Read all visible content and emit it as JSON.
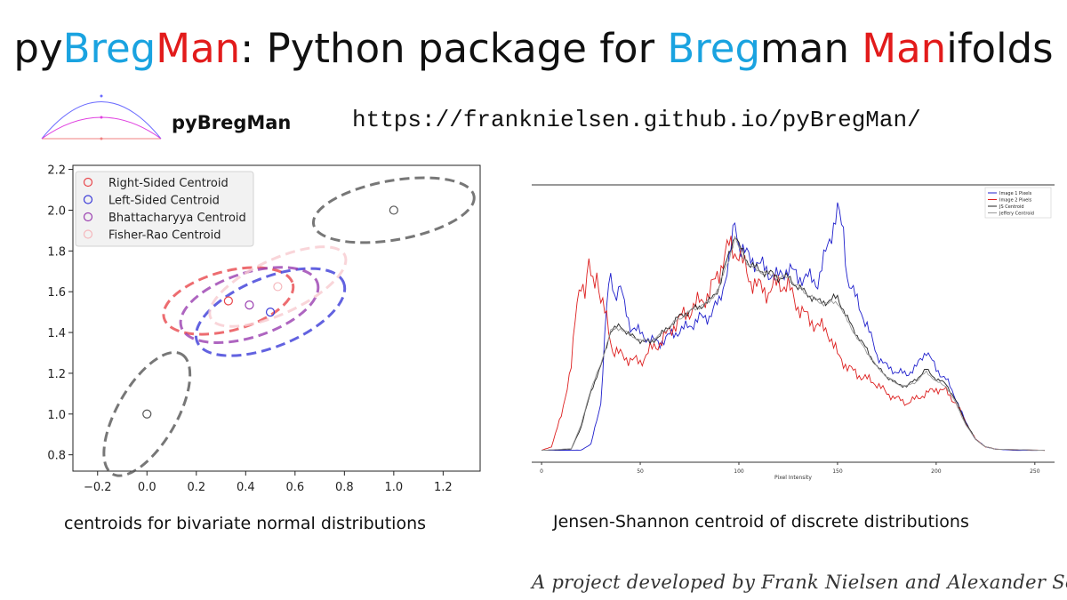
{
  "title": {
    "parts": [
      {
        "text": "py",
        "color": "#111111"
      },
      {
        "text": "Breg",
        "color": "#1aa3e0"
      },
      {
        "text": "Man",
        "color": "#e21b1b"
      },
      {
        "text": ": Python package for ",
        "color": "#111111"
      },
      {
        "text": "Breg",
        "color": "#1aa3e0"
      },
      {
        "text": "man ",
        "color": "#111111"
      },
      {
        "text": "Man",
        "color": "#e21b1b"
      },
      {
        "text": "ifolds",
        "color": "#111111"
      }
    ]
  },
  "logo_text": "pyBregMan",
  "url": "https://franknielsen.github.io/pyBregMan/",
  "caption_left": "centroids for bivariate normal distributions",
  "caption_right": "Jensen-Shannon centroid of discrete distributions",
  "signature": "A project developed by Frank Nielsen and Alexander Soen",
  "chart_data": [
    {
      "type": "scatter",
      "xlim": [
        -0.3,
        1.35
      ],
      "ylim": [
        0.72,
        2.22
      ],
      "xticks": [
        "−0.2",
        "0.0",
        "0.2",
        "0.4",
        "0.6",
        "0.8",
        "1.0",
        "1.2"
      ],
      "xtick_values": [
        -0.2,
        0.0,
        0.2,
        0.4,
        0.6,
        0.8,
        1.0,
        1.2
      ],
      "yticks": [
        "0.8",
        "1.0",
        "1.2",
        "1.4",
        "1.6",
        "1.8",
        "2.0",
        "2.2"
      ],
      "ytick_values": [
        0.8,
        1.0,
        1.2,
        1.4,
        1.6,
        1.8,
        2.0,
        2.2
      ],
      "legend_position": "top-left",
      "legend": [
        {
          "label": "Right-Sided Centroid",
          "color": "#e8474c"
        },
        {
          "label": "Left-Sided Centroid",
          "color": "#3b3bd8"
        },
        {
          "label": "Bhattacharyya Centroid",
          "color": "#9a3fb0"
        },
        {
          "label": "Fisher-Rao Centroid",
          "color": "#f5b8bd"
        }
      ],
      "points": [
        {
          "x": 0.0,
          "y": 1.0,
          "color": "#555555"
        },
        {
          "x": 1.0,
          "y": 2.0,
          "color": "#555555"
        },
        {
          "x": 0.33,
          "y": 1.555,
          "color": "#e8474c"
        },
        {
          "x": 0.415,
          "y": 1.535,
          "color": "#9a3fb0"
        },
        {
          "x": 0.5,
          "y": 1.5,
          "color": "#3b3bd8"
        },
        {
          "x": 0.53,
          "y": 1.625,
          "color": "#f5b8bd"
        }
      ],
      "ellipses": [
        {
          "cx": 0.0,
          "cy": 1.0,
          "rx": 0.28,
          "ry": 0.12,
          "angle": 60,
          "color": "#555555"
        },
        {
          "cx": 1.0,
          "cy": 2.0,
          "rx": 0.33,
          "ry": 0.12,
          "angle": 10,
          "color": "#555555"
        },
        {
          "cx": 0.33,
          "cy": 1.555,
          "rx": 0.27,
          "ry": 0.12,
          "angle": 15,
          "color": "#e8474c"
        },
        {
          "cx": 0.5,
          "cy": 1.5,
          "rx": 0.32,
          "ry": 0.14,
          "angle": 22,
          "color": "#3b3bd8"
        },
        {
          "cx": 0.415,
          "cy": 1.535,
          "rx": 0.29,
          "ry": 0.13,
          "angle": 18,
          "color": "#9a3fb0"
        },
        {
          "cx": 0.53,
          "cy": 1.625,
          "rx": 0.3,
          "ry": 0.11,
          "angle": 25,
          "color": "#f8cbd0"
        }
      ]
    },
    {
      "type": "line",
      "xlabel": "Pixel Intensity",
      "xlim": [
        -5,
        260
      ],
      "xticks": [
        0,
        50,
        100,
        150,
        200,
        250
      ],
      "legend_position": "top-right",
      "series": [
        {
          "name": "Image 1 Pixels",
          "color": "#1f1fcc",
          "keypoints": [
            [
              0,
              0.005
            ],
            [
              20,
              0.006
            ],
            [
              25,
              0.03
            ],
            [
              30,
              0.2
            ],
            [
              33,
              0.6
            ],
            [
              35,
              0.73
            ],
            [
              37,
              0.65
            ],
            [
              40,
              0.68
            ],
            [
              42,
              0.6
            ],
            [
              45,
              0.52
            ],
            [
              50,
              0.49
            ],
            [
              55,
              0.46
            ],
            [
              60,
              0.45
            ],
            [
              65,
              0.48
            ],
            [
              70,
              0.5
            ],
            [
              75,
              0.52
            ],
            [
              80,
              0.55
            ],
            [
              85,
              0.56
            ],
            [
              90,
              0.62
            ],
            [
              95,
              0.78
            ],
            [
              98,
              0.95
            ],
            [
              100,
              0.86
            ],
            [
              105,
              0.8
            ],
            [
              110,
              0.78
            ],
            [
              115,
              0.74
            ],
            [
              120,
              0.72
            ],
            [
              125,
              0.76
            ],
            [
              130,
              0.72
            ],
            [
              135,
              0.72
            ],
            [
              140,
              0.7
            ],
            [
              145,
              0.85
            ],
            [
              150,
              1.0
            ],
            [
              153,
              0.9
            ],
            [
              155,
              0.72
            ],
            [
              160,
              0.62
            ],
            [
              165,
              0.52
            ],
            [
              170,
              0.4
            ],
            [
              175,
              0.35
            ],
            [
              180,
              0.33
            ],
            [
              185,
              0.32
            ],
            [
              190,
              0.35
            ],
            [
              195,
              0.42
            ],
            [
              200,
              0.34
            ],
            [
              205,
              0.3
            ],
            [
              210,
              0.22
            ],
            [
              215,
              0.12
            ],
            [
              220,
              0.05
            ],
            [
              225,
              0.02
            ],
            [
              230,
              0.01
            ],
            [
              240,
              0.005
            ],
            [
              255,
              0.005
            ]
          ]
        },
        {
          "name": "Image 2 Pixels",
          "color": "#dd1f1f",
          "keypoints": [
            [
              0,
              0.005
            ],
            [
              5,
              0.02
            ],
            [
              10,
              0.15
            ],
            [
              15,
              0.35
            ],
            [
              18,
              0.62
            ],
            [
              20,
              0.72
            ],
            [
              22,
              0.65
            ],
            [
              24,
              0.76
            ],
            [
              26,
              0.7
            ],
            [
              28,
              0.75
            ],
            [
              30,
              0.62
            ],
            [
              33,
              0.55
            ],
            [
              36,
              0.42
            ],
            [
              40,
              0.4
            ],
            [
              45,
              0.38
            ],
            [
              50,
              0.37
            ],
            [
              55,
              0.42
            ],
            [
              60,
              0.45
            ],
            [
              65,
              0.5
            ],
            [
              70,
              0.55
            ],
            [
              75,
              0.58
            ],
            [
              80,
              0.62
            ],
            [
              85,
              0.65
            ],
            [
              90,
              0.75
            ],
            [
              95,
              0.85
            ],
            [
              100,
              0.82
            ],
            [
              105,
              0.72
            ],
            [
              110,
              0.68
            ],
            [
              115,
              0.66
            ],
            [
              120,
              0.7
            ],
            [
              125,
              0.68
            ],
            [
              130,
              0.6
            ],
            [
              135,
              0.55
            ],
            [
              140,
              0.52
            ],
            [
              145,
              0.5
            ],
            [
              150,
              0.4
            ],
            [
              155,
              0.35
            ],
            [
              160,
              0.32
            ],
            [
              165,
              0.3
            ],
            [
              170,
              0.28
            ],
            [
              175,
              0.24
            ],
            [
              180,
              0.22
            ],
            [
              185,
              0.2
            ],
            [
              190,
              0.22
            ],
            [
              195,
              0.24
            ],
            [
              200,
              0.26
            ],
            [
              205,
              0.25
            ],
            [
              210,
              0.2
            ],
            [
              215,
              0.12
            ],
            [
              220,
              0.05
            ],
            [
              225,
              0.02
            ],
            [
              230,
              0.01
            ],
            [
              255,
              0.005
            ]
          ]
        },
        {
          "name": "JS Centroid",
          "color": "#222222",
          "keypoints": [
            [
              0,
              0.005
            ],
            [
              15,
              0.01
            ],
            [
              20,
              0.1
            ],
            [
              25,
              0.25
            ],
            [
              30,
              0.35
            ],
            [
              35,
              0.5
            ],
            [
              40,
              0.52
            ],
            [
              45,
              0.48
            ],
            [
              50,
              0.46
            ],
            [
              55,
              0.45
            ],
            [
              60,
              0.48
            ],
            [
              65,
              0.52
            ],
            [
              70,
              0.56
            ],
            [
              75,
              0.58
            ],
            [
              80,
              0.6
            ],
            [
              85,
              0.62
            ],
            [
              90,
              0.68
            ],
            [
              95,
              0.82
            ],
            [
              98,
              0.9
            ],
            [
              100,
              0.85
            ],
            [
              105,
              0.78
            ],
            [
              110,
              0.75
            ],
            [
              115,
              0.74
            ],
            [
              120,
              0.72
            ],
            [
              125,
              0.72
            ],
            [
              130,
              0.68
            ],
            [
              135,
              0.65
            ],
            [
              140,
              0.62
            ],
            [
              145,
              0.62
            ],
            [
              150,
              0.64
            ],
            [
              155,
              0.55
            ],
            [
              160,
              0.48
            ],
            [
              165,
              0.42
            ],
            [
              170,
              0.35
            ],
            [
              175,
              0.31
            ],
            [
              180,
              0.28
            ],
            [
              185,
              0.27
            ],
            [
              190,
              0.3
            ],
            [
              195,
              0.34
            ],
            [
              200,
              0.3
            ],
            [
              205,
              0.28
            ],
            [
              210,
              0.21
            ],
            [
              215,
              0.12
            ],
            [
              220,
              0.05
            ],
            [
              225,
              0.02
            ],
            [
              230,
              0.01
            ],
            [
              255,
              0.005
            ]
          ]
        },
        {
          "name": "Jeffery Centroid",
          "color": "#999999",
          "keypoints": [
            [
              0,
              0.005
            ],
            [
              15,
              0.012
            ],
            [
              20,
              0.11
            ],
            [
              25,
              0.26
            ],
            [
              30,
              0.36
            ],
            [
              35,
              0.5
            ],
            [
              40,
              0.51
            ],
            [
              45,
              0.48
            ],
            [
              50,
              0.46
            ],
            [
              55,
              0.46
            ],
            [
              60,
              0.48
            ],
            [
              65,
              0.52
            ],
            [
              70,
              0.55
            ],
            [
              75,
              0.58
            ],
            [
              80,
              0.6
            ],
            [
              85,
              0.62
            ],
            [
              90,
              0.68
            ],
            [
              95,
              0.8
            ],
            [
              98,
              0.88
            ],
            [
              100,
              0.84
            ],
            [
              105,
              0.77
            ],
            [
              110,
              0.75
            ],
            [
              115,
              0.73
            ],
            [
              120,
              0.72
            ],
            [
              125,
              0.72
            ],
            [
              130,
              0.68
            ],
            [
              135,
              0.65
            ],
            [
              140,
              0.62
            ],
            [
              145,
              0.61
            ],
            [
              150,
              0.62
            ],
            [
              155,
              0.54
            ],
            [
              160,
              0.47
            ],
            [
              165,
              0.41
            ],
            [
              170,
              0.35
            ],
            [
              175,
              0.31
            ],
            [
              180,
              0.28
            ],
            [
              185,
              0.27
            ],
            [
              190,
              0.29
            ],
            [
              195,
              0.33
            ],
            [
              200,
              0.29
            ],
            [
              205,
              0.27
            ],
            [
              210,
              0.2
            ],
            [
              215,
              0.11
            ],
            [
              220,
              0.05
            ],
            [
              225,
              0.02
            ],
            [
              230,
              0.01
            ],
            [
              255,
              0.005
            ]
          ]
        }
      ]
    }
  ]
}
